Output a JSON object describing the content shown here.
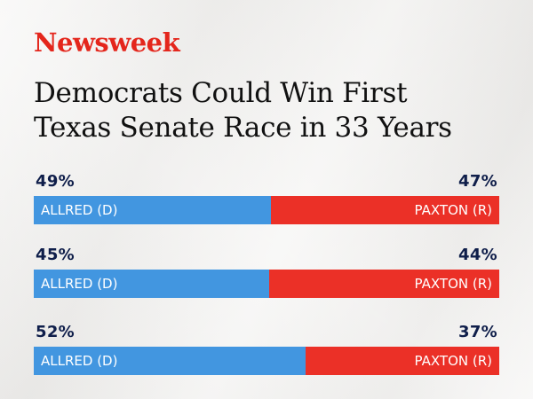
{
  "brand": {
    "name": "Newsweek"
  },
  "headline": {
    "line1": "Democrats Could Win First",
    "line2": "Texas Senate Race in 33 Years"
  },
  "colors": {
    "brand_red": "#e4261c",
    "democrat_blue": "#4296e0",
    "republican_red": "#eb3027",
    "percent_text": "#0f1e4a",
    "label_text": "#ffffff"
  },
  "chart_data": {
    "type": "bar",
    "orientation": "horizontal",
    "stacked": true,
    "title": "Democrats Could Win First Texas Senate Race in 33 Years",
    "categories": [
      "",
      "",
      ""
    ],
    "series": [
      {
        "name": "ALLRED (D)",
        "values": [
          49,
          45,
          52
        ],
        "labels": [
          "49%",
          "45%",
          "52%"
        ],
        "color": "#4296e0"
      },
      {
        "name": "PAXTON (R)",
        "values": [
          47,
          44,
          37
        ],
        "labels": [
          "47%",
          "44%",
          "37%"
        ],
        "color": "#eb3027"
      }
    ],
    "grid": false,
    "legend": "inline"
  }
}
